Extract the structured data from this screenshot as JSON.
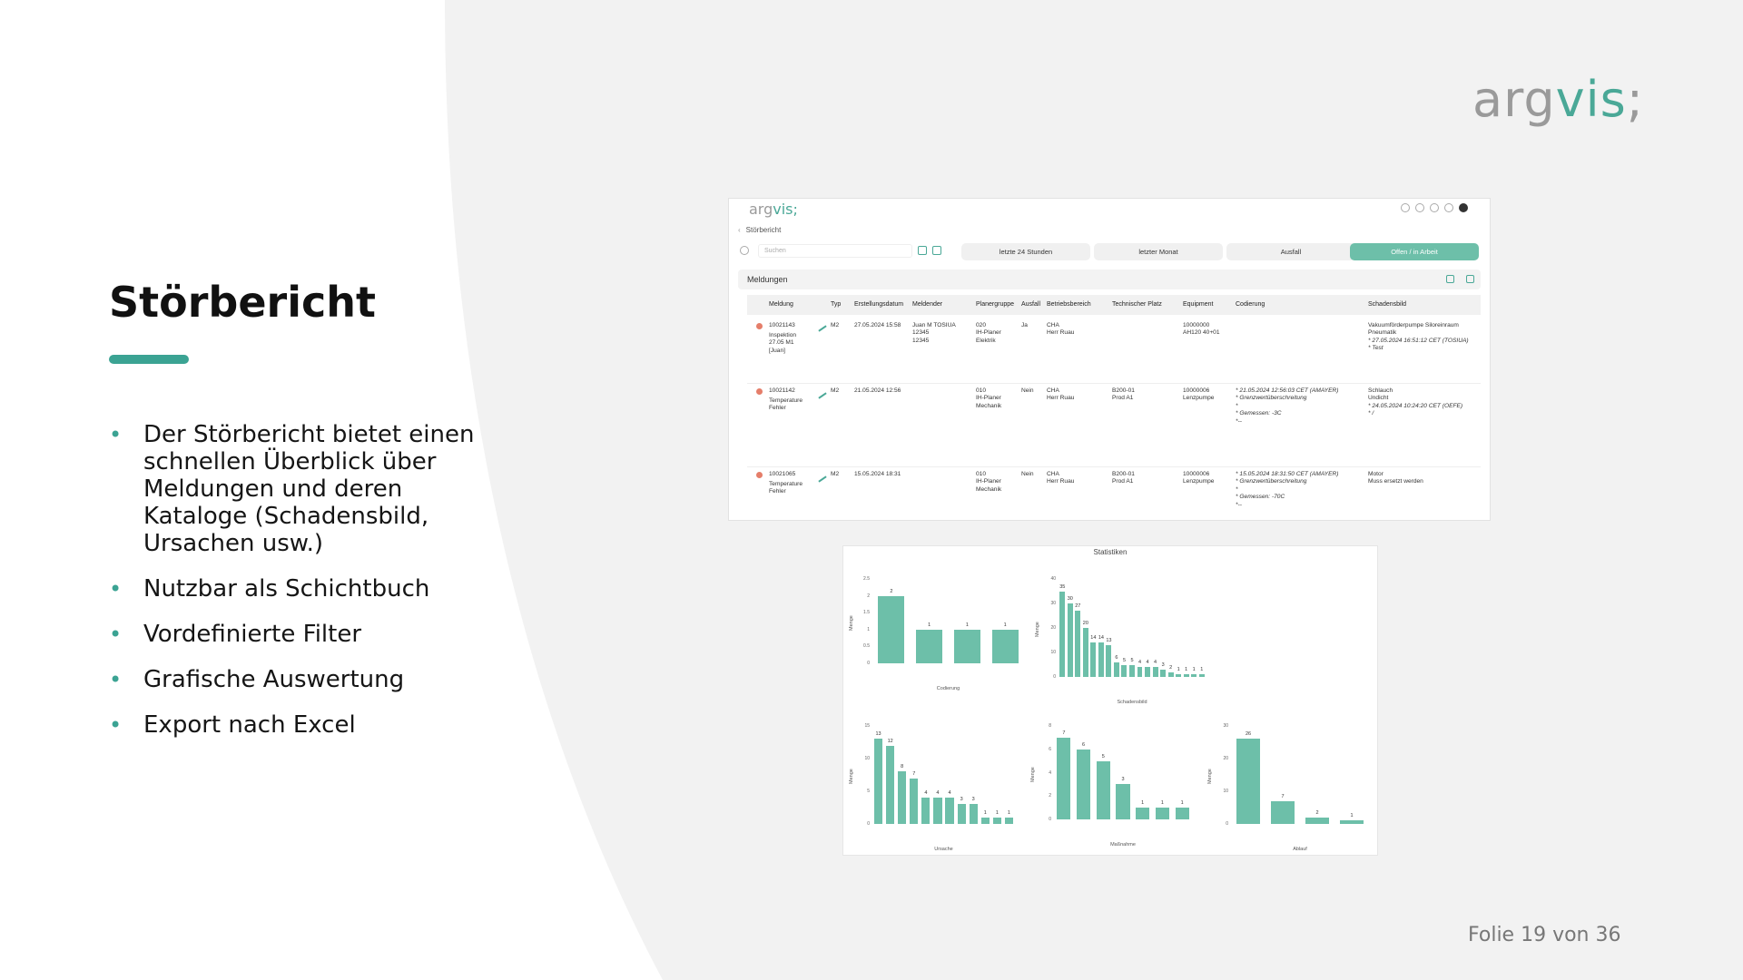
{
  "brand": {
    "part_a": "arg",
    "part_b": "vis",
    "part_c": ";"
  },
  "slide": {
    "title": "Störbericht",
    "bullets": [
      "Der Störbericht bietet einen schnellen Überblick über Meldungen und deren Kataloge (Schadensbild, Ursachen usw.)",
      "Nutzbar als Schichtbuch",
      "Vordefinierte Filter",
      "Grafische Auswertung",
      "Export nach Excel"
    ],
    "footer": "Folie 19 von 36"
  },
  "colors": {
    "accent": "#3ba393",
    "bar": "#6dbfa9",
    "alert_dot": "#e57e6a",
    "background": "#f2f2f2"
  },
  "app": {
    "logo_a": "arg",
    "logo_b": "vis;",
    "breadcrumb": "Störbericht",
    "search_placeholder": "Suchen",
    "filters": [
      "letzte 24 Stunden",
      "letzter Monat",
      "Ausfall",
      "Offen / in Arbeit"
    ],
    "panel_title": "Meldungen",
    "columns": [
      "Meldung",
      "Typ",
      "Erstellungsdatum",
      "Meldender",
      "Planergruppe",
      "Ausfall",
      "Betriebsbereich",
      "Technischer Platz",
      "Equipment",
      "Codierung",
      "Schadensbild"
    ],
    "rows": [
      {
        "meldung": "10021143",
        "meldung_sub": "Inspektion\n27.05 M1\n[Juan]",
        "typ": "M2",
        "datum": "27.05.2024 15:58",
        "meldender": "Juan M TOSIUA\n12345\n12345",
        "planergruppe": "020\nIH-Planer\nElektrik",
        "ausfall": "Ja",
        "betriebsbereich": "CHA\nHerr Ruau",
        "tech_platz": "",
        "equipment": "10000000\nAH120 40+01",
        "codierung": "",
        "schadensbild": "Vakuumförderpumpe Siloreinraum\nPneumatik",
        "schadensbild_note": "* 27.05.2024 16:51:12 CET (TOSIUA)\n* Test"
      },
      {
        "meldung": "10021142",
        "meldung_sub": "Temperature\nFehler",
        "typ": "M2",
        "datum": "21.05.2024 12:56",
        "meldender": "",
        "planergruppe": "010\nIH-Planer\nMechanik",
        "ausfall": "Nein",
        "betriebsbereich": "CHA\nHerr Ruau",
        "tech_platz": "B200-01\nProd A1",
        "equipment": "10000006\nLenzpumpe",
        "codierung": "* 21.05.2024 12:56:03 CET (AMAYER)\n* Grenzwertüberschreitung\n*\n* Gemessen: -3C\n*--",
        "schadensbild": "Schlauch\nUndicht",
        "schadensbild_note": "* 24.05.2024 10:24:20 CET (OEFE)\n* /"
      },
      {
        "meldung": "10021065",
        "meldung_sub": "Temperature\nFehler",
        "typ": "M2",
        "datum": "15.05.2024 18:31",
        "meldender": "",
        "planergruppe": "010\nIH-Planer\nMechanik",
        "ausfall": "Nein",
        "betriebsbereich": "CHA\nHerr Ruau",
        "tech_platz": "B200-01\nProd A1",
        "equipment": "10000006\nLenzpumpe",
        "codierung": "* 15.05.2024 18:31:50 CET (AMAYER)\n* Grenzwertüberschreitung\n*\n* Gemessen: -70C\n*--",
        "schadensbild": "Motor\nMuss ersetzt werden",
        "schadensbild_note": ""
      }
    ]
  },
  "stats": {
    "title": "Statistiken",
    "charts": [
      {
        "xlabel": "Codierung",
        "ylabel": "Menge",
        "yticks": [
          "2.5",
          "2",
          "1.5",
          "1",
          "0.5",
          "0"
        ],
        "ymax": 2.5,
        "values": [
          2,
          1,
          1,
          1
        ],
        "labels": [
          "2",
          "1",
          "1",
          "1"
        ]
      },
      {
        "xlabel": "Schadensbild",
        "ylabel": "Menge",
        "yticks": [
          "40",
          "30",
          "20",
          "10",
          "0"
        ],
        "ymax": 40,
        "values": [
          35,
          30,
          27,
          20,
          14,
          14,
          13,
          6,
          5,
          5,
          4,
          4,
          4,
          3,
          2,
          1,
          1,
          1,
          1
        ],
        "labels": [
          "35",
          "30",
          "27",
          "20",
          "14",
          "14",
          "13",
          "6",
          "5",
          "5",
          "4",
          "4",
          "4",
          "3",
          "2",
          "1",
          "1",
          "1",
          "1"
        ]
      },
      {
        "xlabel": "Ursache",
        "ylabel": "Menge",
        "yticks": [
          "15",
          "10",
          "5",
          "0"
        ],
        "ymax": 15,
        "values": [
          13,
          12,
          8,
          7,
          4,
          4,
          4,
          3,
          3,
          1,
          1,
          1
        ],
        "labels": [
          "13",
          "12",
          "8",
          "7",
          "4",
          "4",
          "4",
          "3",
          "3",
          "1",
          "1",
          "1"
        ]
      },
      {
        "xlabel": "Maßnahme",
        "ylabel": "Menge",
        "yticks": [
          "8",
          "6",
          "4",
          "2",
          "0"
        ],
        "ymax": 8,
        "values": [
          7,
          6,
          5,
          3,
          1,
          1,
          1
        ],
        "labels": [
          "7",
          "6",
          "5",
          "3",
          "1",
          "1",
          "1"
        ]
      },
      {
        "xlabel": "Ablauf",
        "ylabel": "Menge",
        "yticks": [
          "30",
          "20",
          "10",
          "0"
        ],
        "ymax": 30,
        "values": [
          26,
          7,
          2,
          1
        ],
        "labels": [
          "26",
          "7",
          "2",
          "1"
        ]
      }
    ]
  }
}
